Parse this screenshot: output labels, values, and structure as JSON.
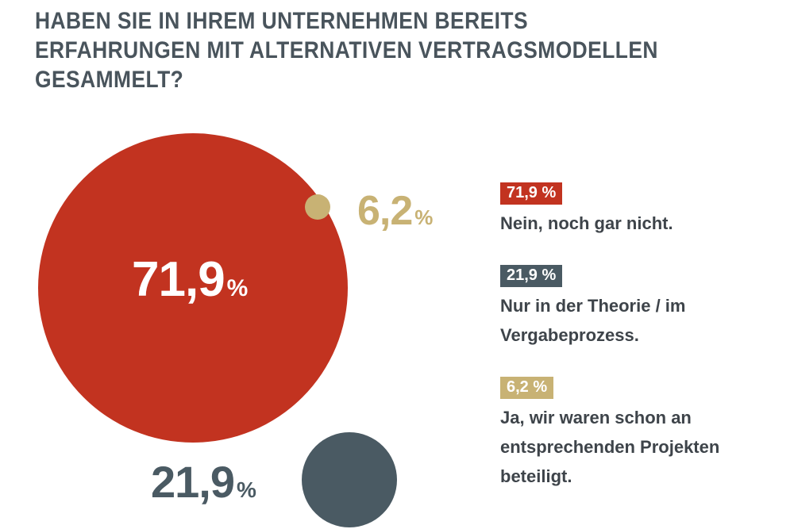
{
  "title": {
    "lines": [
      "HABEN SIE IN IHREM UNTERNEHMEN BEREITS",
      "ERFAHRUNGEN MIT ALTERNATIVEN VERTRAGSMODELLEN",
      "GESAMMELT?"
    ]
  },
  "colors": {
    "red": "#C23320",
    "slate": "#4A5A63",
    "gold": "#C8B274",
    "title_text": "#49545C",
    "legend_text": "#3E444A",
    "value_text_on_red": "#FFFFFF",
    "background": "#FFFFFF"
  },
  "bubbles": {
    "nein": {
      "value_label": "71,9",
      "percent_sign": "%"
    },
    "theorie": {
      "value_label": "21,9",
      "percent_sign": "%"
    },
    "ja": {
      "value_label": "6,2",
      "percent_sign": "%"
    }
  },
  "legend": {
    "items": [
      {
        "badge": "71,9 %",
        "lines": [
          "Nein, noch gar nicht."
        ]
      },
      {
        "badge": "21,9 %",
        "lines": [
          "Nur in der Theorie / im",
          "Vergabeprozess."
        ]
      },
      {
        "badge": "6,2 %",
        "lines": [
          "Ja, wir waren schon an",
          "entsprechenden Projekten",
          "beteiligt."
        ]
      }
    ]
  },
  "chart_data": {
    "type": "bubble",
    "title": "Haben Sie in Ihrem Unternehmen bereits Erfahrungen mit alternativen Vertragsmodellen gesammelt?",
    "unit": "percent",
    "series": [
      {
        "name": "Nein, noch gar nicht.",
        "value": 71.9,
        "value_label": "71,9 %",
        "color": "#C23320"
      },
      {
        "name": "Nur in der Theorie / im Vergabeprozess.",
        "value": 21.9,
        "value_label": "21,9 %",
        "color": "#4A5A63"
      },
      {
        "name": "Ja, wir waren schon an entsprechenden Projekten beteiligt.",
        "value": 6.2,
        "value_label": "6,2 %",
        "color": "#C8B274"
      }
    ],
    "total": 100,
    "layout": {
      "style": "proportional circles, radius proportional to value",
      "legend_position": "right",
      "grid": false
    }
  }
}
